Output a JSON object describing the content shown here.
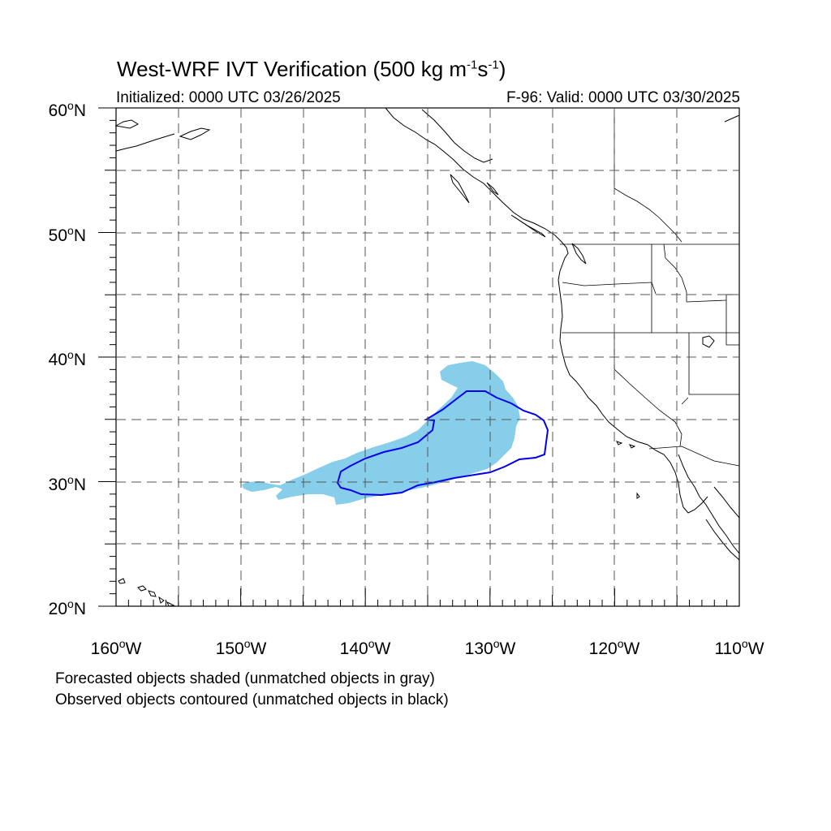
{
  "title": {
    "main": "West-WRF IVT Verification (500 kg m",
    "exp1": "-1",
    "unit_s": "s",
    "exp2": "-1",
    "close": ")"
  },
  "subtitle": {
    "init": "Initialized: 0000 UTC 03/26/2025",
    "valid": "F-96: Valid: 0000 UTC 03/30/2025"
  },
  "lat_labels": [
    {
      "value": "60",
      "hemi": "N"
    },
    {
      "value": "50",
      "hemi": "N"
    },
    {
      "value": "40",
      "hemi": "N"
    },
    {
      "value": "30",
      "hemi": "N"
    },
    {
      "value": "20",
      "hemi": "N"
    }
  ],
  "lon_labels": [
    {
      "value": "160",
      "hemi": "W"
    },
    {
      "value": "150",
      "hemi": "W"
    },
    {
      "value": "140",
      "hemi": "W"
    },
    {
      "value": "130",
      "hemi": "W"
    },
    {
      "value": "120",
      "hemi": "W"
    },
    {
      "value": "110",
      "hemi": "W"
    }
  ],
  "degree_symbol": "o",
  "notes": {
    "line1": "Forecasted objects shaded (unmatched objects in gray)",
    "line2": "Observed objects contoured (unmatched objects in black)"
  },
  "colors": {
    "forecast_fill": "#87ceeb",
    "observed_contour": "#0000ee",
    "coastline": "#000000",
    "grid": "#555555"
  },
  "map_extent": {
    "lon_min": -160,
    "lon_max": -110,
    "lat_min": 20,
    "lat_max": 60
  }
}
